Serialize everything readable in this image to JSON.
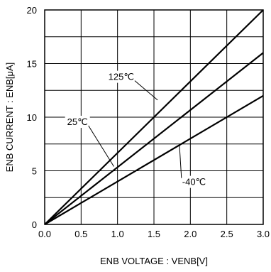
{
  "chart_data": {
    "type": "line",
    "title": "",
    "xlabel": "ENB VOLTAGE : VENB[V]",
    "ylabel": "ENB CURRENT : ENB[μA]",
    "xlim": [
      0,
      3.0
    ],
    "ylim": [
      0,
      20
    ],
    "xticks": [
      "0.0",
      "0.5",
      "1.0",
      "1.5",
      "2.0",
      "2.5",
      "3.0"
    ],
    "yticks": [
      "0",
      "5",
      "10",
      "15",
      "20"
    ],
    "grid": true,
    "legend": "none",
    "series": [
      {
        "name": "125℃",
        "x": [
          0,
          3.0
        ],
        "y": [
          0,
          20.0
        ]
      },
      {
        "name": "25℃",
        "x": [
          0,
          3.0
        ],
        "y": [
          0,
          16.0
        ]
      },
      {
        "name": "-40℃",
        "x": [
          0,
          3.0
        ],
        "y": [
          0,
          12.0
        ]
      }
    ],
    "annotations": [
      {
        "text": "125℃",
        "series": 0,
        "anchor_x": 1.55,
        "anchor_y": 11.6,
        "label_x": 1.05,
        "label_y": 13.8
      },
      {
        "text": "25℃",
        "series": 1,
        "anchor_x": 0.95,
        "anchor_y": 5.4,
        "label_x": 0.45,
        "label_y": 9.6
      },
      {
        "text": "-40℃",
        "series": 2,
        "anchor_x": 1.85,
        "anchor_y": 7.4,
        "label_x": 2.05,
        "label_y": 4.0
      }
    ]
  }
}
